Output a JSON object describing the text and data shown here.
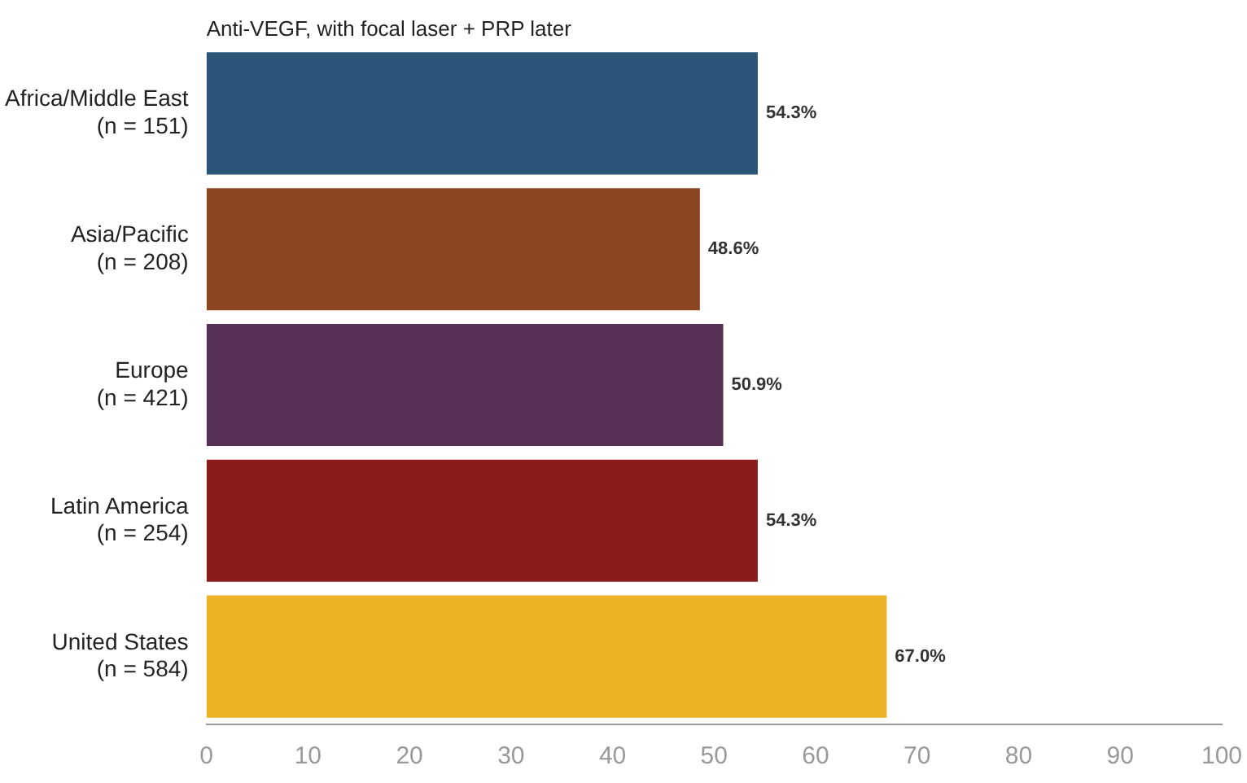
{
  "chart_data": {
    "type": "bar",
    "orientation": "horizontal",
    "title": "Anti-VEGF, with focal laser + PRP later",
    "categories": [
      "Africa/Middle East\n(n = 151)",
      "Asia/Pacific\n(n = 208)",
      "Europe\n(n = 421)",
      "Latin America\n(n = 254)",
      "United States\n(n = 584)"
    ],
    "values": [
      54.3,
      48.6,
      50.9,
      54.3,
      67.0
    ],
    "colors": [
      "#2b5479",
      "#8b4520",
      "#573155",
      "#8b1c1c",
      "#eab224"
    ],
    "value_labels": [
      "54.3%",
      "48.6%",
      "50.9%",
      "54.3%",
      "67.0%"
    ],
    "xlim": [
      0,
      100
    ],
    "xticks": [
      0,
      10,
      20,
      30,
      40,
      50,
      60,
      70,
      80,
      90,
      100
    ],
    "grid": false,
    "legend": false
  }
}
